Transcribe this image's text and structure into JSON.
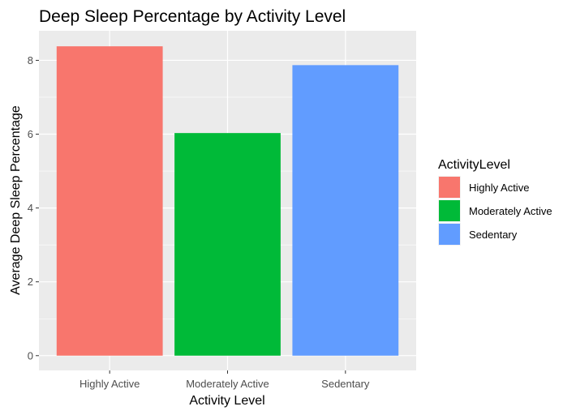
{
  "chart_data": {
    "type": "bar",
    "title": "Deep Sleep Percentage by Activity Level",
    "xlabel": "Activity Level",
    "ylabel": "Average Deep Sleep Percentage",
    "categories": [
      "Highly Active",
      "Moderately Active",
      "Sedentary"
    ],
    "values": [
      8.38,
      6.03,
      7.87
    ],
    "colors": [
      "#F8766D",
      "#00BA38",
      "#619CFF"
    ],
    "ylim": [
      -0.4,
      8.8
    ],
    "yticks": [
      0,
      2,
      4,
      6,
      8
    ],
    "grid": true,
    "panel_background": "#EBEBEB",
    "legend": {
      "title": "ActivityLevel",
      "position": "right",
      "entries": [
        "Highly Active",
        "Moderately Active",
        "Sedentary"
      ]
    }
  }
}
